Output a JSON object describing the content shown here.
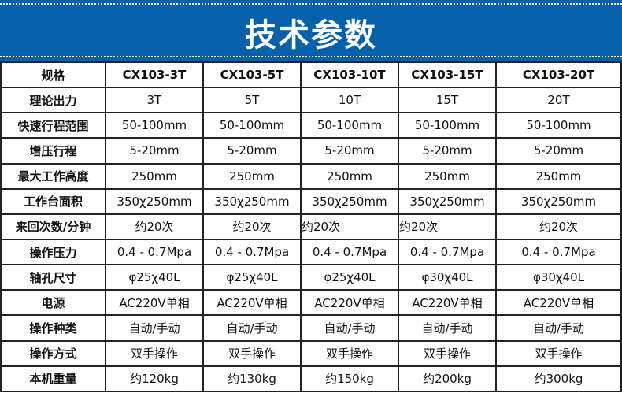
{
  "title": "技术参数",
  "colors": {
    "banner": "#0660aa"
  },
  "header": [
    "规格",
    "CX103-3T",
    "CX103-5T",
    "CX103-10T",
    "CX103-15T",
    "CX103-20T"
  ],
  "rows": [
    [
      "理论出力",
      "3T",
      "5T",
      "10T",
      "15T",
      "20T"
    ],
    [
      "快速行程范围",
      "50-100mm",
      "50-100mm",
      "50-100mm",
      "50-100mm",
      "50-100mm"
    ],
    [
      "增压行程",
      "5-20mm",
      "5-20mm",
      "5-20mm",
      "5-20mm",
      "5-20mm"
    ],
    [
      "最大工作高度",
      "250mm",
      "250mm",
      "250mm",
      "250mm",
      "250mm"
    ],
    [
      "工作台面积",
      "350χ250mm",
      "350χ250mm",
      "350χ250mm",
      "350χ250mm",
      "350χ250mm"
    ],
    [
      "来回次数/分钟",
      "约20次",
      "约20次",
      "约20次",
      "约20次",
      "约20次"
    ],
    [
      "操作压力",
      "0.4 - 0.7Mpa",
      "0.4 - 0.7Mpa",
      "0.4 - 0.7Mpa",
      "0.4 - 0.7Mpa",
      "0.4 - 0.7Mpa"
    ],
    [
      "轴孔尺寸",
      "φ25χ40L",
      "φ25χ40L",
      "φ25χ40L",
      "φ30χ40L",
      "φ30χ40L"
    ],
    [
      "电源",
      "AC220V单相",
      "AC220V单相",
      "AC220V单相",
      "AC220V单相",
      "AC220V单相"
    ],
    [
      "操作种类",
      "自动/手动",
      "自动/手动",
      "自动/手动",
      "自动/手动",
      "自动/手动"
    ],
    [
      "操作方式",
      "双手操作",
      "双手操作",
      "双手操作",
      "双手操作",
      "双手操作"
    ],
    [
      "本机重量",
      "约120kg",
      "约130kg",
      "约150kg",
      "约200kg",
      "约300kg"
    ]
  ]
}
